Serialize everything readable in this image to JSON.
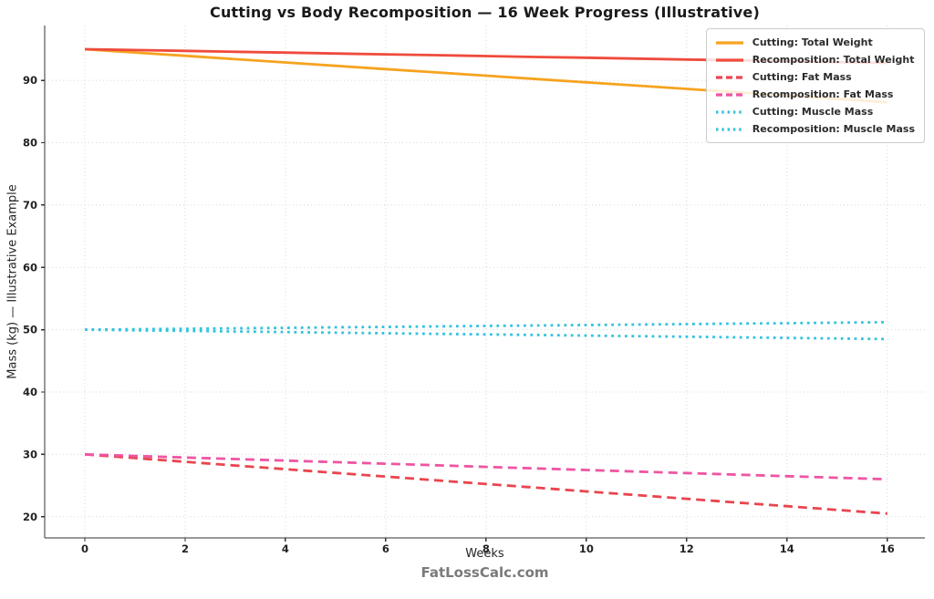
{
  "chart_data": {
    "type": "line",
    "title": "Cutting vs Body Recomposition — 16 Week Progress (Illustrative)",
    "xlabel": "Weeks",
    "ylabel": "Mass (kg) — Illustrative Example",
    "footer": "FatLossCalc.com",
    "x": [
      0,
      1,
      2,
      3,
      4,
      5,
      6,
      7,
      8,
      9,
      10,
      11,
      12,
      13,
      14,
      15,
      16
    ],
    "xticks": [
      0,
      2,
      4,
      6,
      8,
      10,
      12,
      14,
      16
    ],
    "yticks": [
      20,
      30,
      40,
      50,
      60,
      70,
      80,
      90
    ],
    "xlim": [
      -0.8,
      16.75
    ],
    "ylim": [
      16.6,
      98.8
    ],
    "grid": true,
    "grid_style": "dotted",
    "grid_color": "#d8d8d8",
    "axis_color": "#333333",
    "legend_position": "upper right",
    "series": [
      {
        "name": "Cutting: Total Weight",
        "color": "#F6A320",
        "style": "solid",
        "values": [
          95.0,
          94.47,
          93.94,
          93.41,
          92.88,
          92.34,
          91.81,
          91.28,
          90.75,
          90.22,
          89.69,
          89.16,
          88.63,
          88.09,
          87.56,
          87.03,
          86.5
        ]
      },
      {
        "name": "Recomposition: Total Weight",
        "color": "#EF4B3C",
        "style": "solid",
        "values": [
          95.0,
          94.86,
          94.73,
          94.59,
          94.45,
          94.31,
          94.18,
          94.04,
          93.9,
          93.76,
          93.63,
          93.49,
          93.35,
          93.21,
          93.08,
          92.94,
          92.8
        ]
      },
      {
        "name": "Cutting: Fat Mass",
        "color": "#E9454F",
        "style": "dashed",
        "values": [
          30.0,
          29.41,
          28.81,
          28.22,
          27.63,
          27.03,
          26.44,
          25.84,
          25.25,
          24.66,
          24.06,
          23.47,
          22.88,
          22.28,
          21.69,
          21.09,
          20.5
        ]
      },
      {
        "name": "Recomposition: Fat Mass",
        "color": "#EE55A3",
        "style": "dashed",
        "values": [
          30.0,
          29.75,
          29.5,
          29.25,
          29.0,
          28.75,
          28.5,
          28.25,
          28.0,
          27.75,
          27.5,
          27.25,
          27.0,
          26.75,
          26.5,
          26.25,
          26.0
        ]
      },
      {
        "name": "Cutting: Muscle Mass",
        "color": "#33C3DE",
        "style": "dotted",
        "values": [
          50.0,
          49.91,
          49.81,
          49.72,
          49.63,
          49.53,
          49.44,
          49.34,
          49.25,
          49.16,
          49.06,
          48.97,
          48.88,
          48.78,
          48.69,
          48.59,
          48.5
        ]
      },
      {
        "name": "Recomposition: Muscle Mass",
        "color": "#33C3DE",
        "style": "dotted",
        "values": [
          50.0,
          50.08,
          50.15,
          50.23,
          50.3,
          50.38,
          50.45,
          50.53,
          50.6,
          50.68,
          50.75,
          50.83,
          50.9,
          50.98,
          51.05,
          51.13,
          51.2
        ]
      }
    ]
  }
}
